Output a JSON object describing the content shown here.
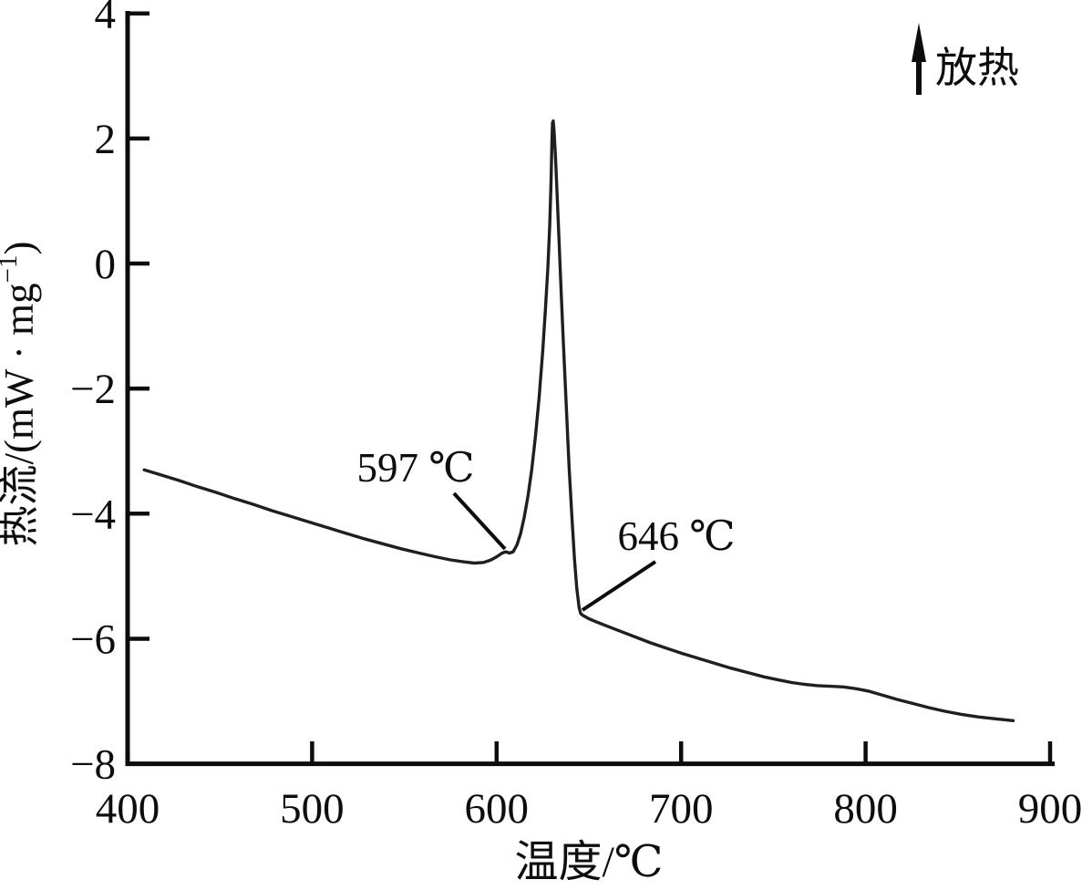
{
  "exothermic": {
    "label": "放热"
  },
  "axes": {
    "x_title": "温度/℃",
    "y_title_main": "热流/(mW · mg",
    "y_title_sup": "−1",
    "y_title_close": ")",
    "x_tick_labels": [
      "400",
      "500",
      "600",
      "700",
      "800",
      "900"
    ],
    "y_tick_labels": [
      "4",
      "2",
      "0",
      "−2",
      "−4",
      "−6",
      "−8"
    ]
  },
  "annotations": [
    {
      "label": "597 ℃"
    },
    {
      "label": "646 ℃"
    }
  ],
  "chart_data": {
    "type": "line",
    "xlabel": "温度/℃",
    "ylabel": "热流/(mW·mg⁻¹)",
    "xlim": [
      400,
      900
    ],
    "ylim": [
      -8,
      4
    ],
    "x_ticks": [
      400,
      500,
      600,
      700,
      800,
      900
    ],
    "y_ticks": [
      4,
      2,
      0,
      -2,
      -4,
      -6,
      -8
    ],
    "grid": false,
    "exothermic_direction_label": "放热",
    "annotations": [
      {
        "text": "597 ℃",
        "points_to": {
          "x": 604,
          "y": -4.6
        }
      },
      {
        "text": "646 ℃",
        "points_to": {
          "x": 645,
          "y": -5.6
        }
      }
    ],
    "series": [
      {
        "name": "curve",
        "points": [
          [
            409,
            -3.3
          ],
          [
            418,
            -3.38
          ],
          [
            428,
            -3.47
          ],
          [
            438,
            -3.57
          ],
          [
            448,
            -3.66
          ],
          [
            458,
            -3.76
          ],
          [
            468,
            -3.85
          ],
          [
            478,
            -3.95
          ],
          [
            488,
            -4.04
          ],
          [
            498,
            -4.13
          ],
          [
            508,
            -4.22
          ],
          [
            518,
            -4.31
          ],
          [
            528,
            -4.4
          ],
          [
            538,
            -4.48
          ],
          [
            548,
            -4.56
          ],
          [
            558,
            -4.63
          ],
          [
            567,
            -4.69
          ],
          [
            575,
            -4.74
          ],
          [
            582,
            -4.77
          ],
          [
            588,
            -4.79
          ],
          [
            593,
            -4.78
          ],
          [
            597,
            -4.74
          ],
          [
            600,
            -4.69
          ],
          [
            603,
            -4.63
          ],
          [
            605,
            -4.61
          ],
          [
            607,
            -4.63
          ],
          [
            609,
            -4.61
          ],
          [
            611,
            -4.5
          ],
          [
            613,
            -4.32
          ],
          [
            615,
            -4.05
          ],
          [
            617,
            -3.72
          ],
          [
            619,
            -3.3
          ],
          [
            621,
            -2.78
          ],
          [
            623,
            -2.15
          ],
          [
            625,
            -1.4
          ],
          [
            626.5,
            -0.72
          ],
          [
            627.8,
            -0.05
          ],
          [
            628.8,
            0.62
          ],
          [
            629.5,
            1.3
          ],
          [
            630,
            1.95
          ],
          [
            630.3,
            2.25
          ],
          [
            630.7,
            2.28
          ],
          [
            631.2,
            2.1
          ],
          [
            631.9,
            1.7
          ],
          [
            632.8,
            1.1
          ],
          [
            633.8,
            0.4
          ],
          [
            635,
            -0.45
          ],
          [
            636.3,
            -1.35
          ],
          [
            637.8,
            -2.3
          ],
          [
            639.3,
            -3.25
          ],
          [
            640.8,
            -4.05
          ],
          [
            642.2,
            -4.72
          ],
          [
            643.5,
            -5.2
          ],
          [
            644.7,
            -5.5
          ],
          [
            645.6,
            -5.6
          ],
          [
            647,
            -5.63
          ],
          [
            650,
            -5.68
          ],
          [
            654,
            -5.73
          ],
          [
            660,
            -5.8
          ],
          [
            667,
            -5.88
          ],
          [
            675,
            -5.97
          ],
          [
            683,
            -6.06
          ],
          [
            691,
            -6.14
          ],
          [
            700,
            -6.23
          ],
          [
            709,
            -6.31
          ],
          [
            718,
            -6.39
          ],
          [
            727,
            -6.47
          ],
          [
            736,
            -6.54
          ],
          [
            745,
            -6.61
          ],
          [
            753,
            -6.66
          ],
          [
            760,
            -6.7
          ],
          [
            767,
            -6.73
          ],
          [
            774,
            -6.75
          ],
          [
            781,
            -6.76
          ],
          [
            788,
            -6.77
          ],
          [
            795,
            -6.8
          ],
          [
            802,
            -6.84
          ],
          [
            809,
            -6.9
          ],
          [
            817,
            -6.97
          ],
          [
            825,
            -7.03
          ],
          [
            834,
            -7.1
          ],
          [
            843,
            -7.16
          ],
          [
            852,
            -7.21
          ],
          [
            861,
            -7.25
          ],
          [
            870,
            -7.28
          ],
          [
            880,
            -7.31
          ]
        ]
      }
    ]
  }
}
